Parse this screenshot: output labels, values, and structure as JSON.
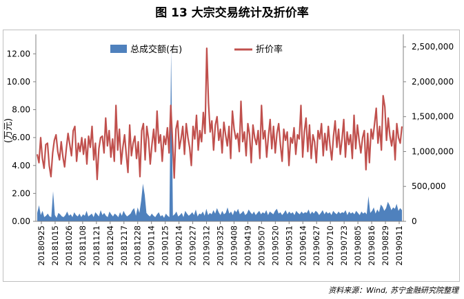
{
  "title": "图 13  大宗交易统计及折价率",
  "source": "资料来源：Wind, 苏宁金融研究院整理",
  "chart_data": {
    "type": "line",
    "title": "图 13  大宗交易统计及折价率",
    "ylabel_left": "(万元)",
    "ylim_left": [
      0,
      13
    ],
    "yticks_left": [
      "0.00",
      "2.00",
      "4.00",
      "6.00",
      "8.00",
      "10.00",
      "12.00"
    ],
    "ylim_right": [
      0,
      2600000
    ],
    "yticks_right": [
      "0",
      "500,000",
      "1,000,000",
      "1,500,000",
      "2,000,000",
      "2,500,000"
    ],
    "legend": [
      "总成交额(右)",
      "折价率"
    ],
    "legend_position": "top",
    "colors": {
      "area": "#4f81bd",
      "line": "#c0504d"
    },
    "x_tick_labels": [
      "20180925",
      "20181015",
      "20181026",
      "20181108",
      "20181121",
      "20181204",
      "20181217",
      "20181228",
      "20190114",
      "20190125",
      "20190214",
      "20190227",
      "20190312",
      "20190325",
      "20190408",
      "20190419",
      "20190507",
      "20190520",
      "20190531",
      "20190614",
      "20190627",
      "20190710",
      "20190723",
      "20190805",
      "20190816",
      "20190829",
      "20190911"
    ],
    "series": [
      {
        "name": "折价率",
        "axis": "left",
        "type": "line",
        "values": [
          4.8,
          4.2,
          6.0,
          4.5,
          3.8,
          5.5,
          5.6,
          4.0,
          3.2,
          4.9,
          5.8,
          6.2,
          5.0,
          4.4,
          5.7,
          4.6,
          3.9,
          5.2,
          6.3,
          5.5,
          4.7,
          6.5,
          6.8,
          4.3,
          5.6,
          5.0,
          6.0,
          4.8,
          5.9,
          4.1,
          6.1,
          5.3,
          6.8,
          4.4,
          5.6,
          3.0,
          5.2,
          6.0,
          6.1,
          4.9,
          7.4,
          5.4,
          6.5,
          4.6,
          5.9,
          4.3,
          8.3,
          5.1,
          6.6,
          4.1,
          5.3,
          6.2,
          4.8,
          3.5,
          6.9,
          4.7,
          5.6,
          6.1,
          4.5,
          5.7,
          3.2,
          6.5,
          7.0,
          4.4,
          6.8,
          5.9,
          4.1,
          5.5,
          6.6,
          5.0,
          7.9,
          5.6,
          6.2,
          4.3,
          6.1,
          5.5,
          6.7,
          4.9,
          8.3,
          5.8,
          3.1,
          6.6,
          7.2,
          5.2,
          5.9,
          6.8,
          4.8,
          7.0,
          6.0,
          5.3,
          4.0,
          6.8,
          5.9,
          7.6,
          5.1,
          6.5,
          5.7,
          7.8,
          6.3,
          12.4,
          8.5,
          6.4,
          7.2,
          5.1,
          6.9,
          7.5,
          5.8,
          6.6,
          4.9,
          7.1,
          6.2,
          5.4,
          6.8,
          4.5,
          7.9,
          6.6,
          5.9,
          6.3,
          5.0,
          8.6,
          5.7,
          6.4,
          4.7,
          7.0,
          6.2,
          4.2,
          6.9,
          6.0,
          5.5,
          6.5,
          4.5,
          8.3,
          5.9,
          6.5,
          4.6,
          6.1,
          7.3,
          5.2,
          6.8,
          4.9,
          6.3,
          7.0,
          5.5,
          4.3,
          6.6,
          5.8,
          6.4,
          4.0,
          6.0,
          5.6,
          6.7,
          4.8,
          6.2,
          5.9,
          8.3,
          4.6,
          6.4,
          7.4,
          5.0,
          6.9,
          4.5,
          6.2,
          5.7,
          4.2,
          6.5,
          5.9,
          7.0,
          4.7,
          6.3,
          5.1,
          6.8,
          5.4,
          4.4,
          6.1,
          7.2,
          5.3,
          6.6,
          4.8,
          5.9,
          7.3,
          4.6,
          6.4,
          5.5,
          6.2,
          4.5,
          7.6,
          5.2,
          6.9,
          5.8,
          4.9,
          6.0,
          6.5,
          3.7,
          6.3,
          4.2,
          6.6,
          5.9,
          7.0,
          8.1,
          5.6,
          6.8,
          5.1,
          9.0,
          8.2,
          5.8,
          7.4,
          6.1,
          5.4,
          6.5,
          4.4,
          7.0,
          6.0,
          5.6,
          6.8
        ]
      },
      {
        "name": "总成交额(右)",
        "axis": "right",
        "type": "area",
        "values": [
          120000,
          230000,
          90000,
          150000,
          60000,
          80000,
          110000,
          70000,
          60000,
          430000,
          90000,
          50000,
          120000,
          100000,
          70000,
          60000,
          90000,
          140000,
          80000,
          100000,
          60000,
          130000,
          90000,
          70000,
          110000,
          60000,
          100000,
          80000,
          150000,
          70000,
          90000,
          110000,
          60000,
          130000,
          100000,
          70000,
          160000,
          90000,
          120000,
          80000,
          60000,
          140000,
          100000,
          70000,
          110000,
          90000,
          60000,
          130000,
          80000,
          150000,
          100000,
          70000,
          90000,
          110000,
          160000,
          190000,
          80000,
          200000,
          120000,
          300000,
          540000,
          380000,
          120000,
          90000,
          70000,
          110000,
          80000,
          60000,
          100000,
          130000,
          70000,
          90000,
          50000,
          110000,
          80000,
          60000,
          2450000,
          80000,
          100000,
          140000,
          70000,
          90000,
          120000,
          60000,
          150000,
          110000,
          80000,
          100000,
          130000,
          90000,
          170000,
          70000,
          110000,
          100000,
          140000,
          80000,
          180000,
          90000,
          120000,
          100000,
          160000,
          110000,
          190000,
          130000,
          90000,
          150000,
          100000,
          120000,
          200000,
          110000,
          140000,
          90000,
          160000,
          130000,
          180000,
          100000,
          120000,
          150000,
          90000,
          110000,
          170000,
          130000,
          100000,
          140000,
          90000,
          120000,
          150000,
          100000,
          130000,
          110000,
          160000,
          90000,
          140000,
          120000,
          100000,
          150000,
          180000,
          110000,
          130000,
          90000,
          120000,
          160000,
          100000,
          140000,
          110000,
          130000,
          90000,
          150000,
          120000,
          100000,
          140000,
          110000,
          130000,
          120000,
          170000,
          100000,
          140000,
          110000,
          150000,
          130000,
          90000,
          120000,
          160000,
          100000,
          140000,
          110000,
          130000,
          90000,
          150000,
          120000,
          100000,
          140000,
          110000,
          130000,
          120000,
          160000,
          90000,
          140000,
          110000,
          130000,
          100000,
          150000,
          120000,
          90000,
          140000,
          110000,
          130000,
          100000,
          360000,
          120000,
          150000,
          200000,
          110000,
          170000,
          130000,
          240000,
          210000,
          150000,
          190000,
          280000,
          230000,
          160000,
          200000,
          180000,
          250000,
          150000,
          190000,
          160000
        ]
      }
    ]
  }
}
